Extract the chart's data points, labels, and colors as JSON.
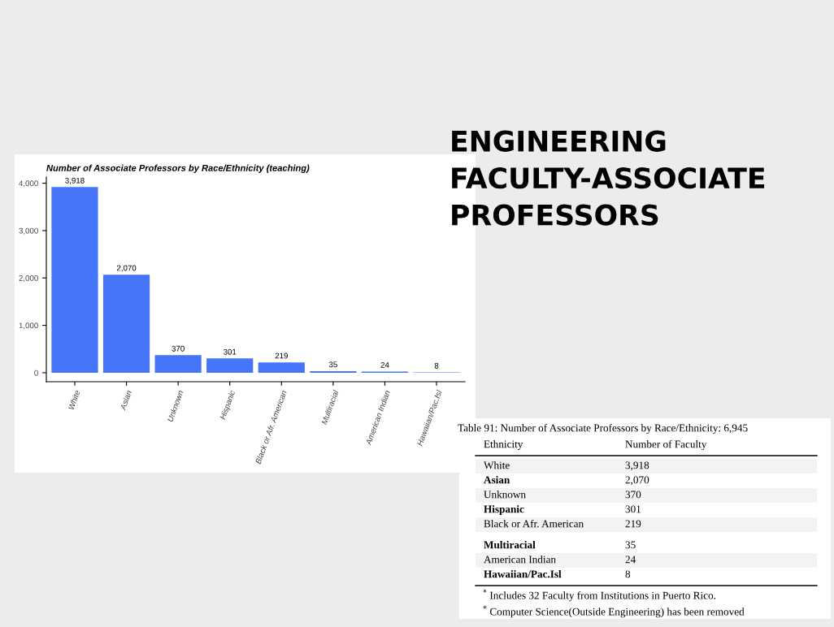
{
  "chart_data": {
    "type": "bar",
    "title": "ENGINEERING\nFACULTY-ASSOCIATE\nPROFESSORS",
    "subtitle": "Number of Associate Professors by Race/Ethnicity (teaching)",
    "categories": [
      "White",
      "Asian",
      "Unknown",
      "Hispanic",
      "Black or Afr. American",
      "Multiracial",
      "American Indian",
      "Hawaiian/Pac.Isl"
    ],
    "values": [
      3918,
      2070,
      370,
      301,
      219,
      35,
      24,
      8
    ],
    "value_labels": [
      "3,918",
      "2,070",
      "370",
      "301",
      "219",
      "35",
      "24",
      "8"
    ],
    "color": "#4775fa",
    "ylim": [
      -190,
      4130
    ],
    "yticks": [
      0,
      {
        "value": 1000,
        "label": "1,000"
      },
      {
        "value": 2000,
        "label": "2,000"
      },
      {
        "value": 3000,
        "label": "3,000"
      },
      {
        "value": 4000,
        "label": "4,000"
      }
    ],
    "annotations": [
      "Table 91: Number of Associate Professors by Race/Ethnicity: 6,945",
      "Ethnicity",
      "Number of Faculty",
      "$^{*}$ Includes 32 Faculty from Institutions in Puerto Rico.",
      "$^{*}$ Computer Science(Outside Engineering) has been removed"
    ]
  }
}
